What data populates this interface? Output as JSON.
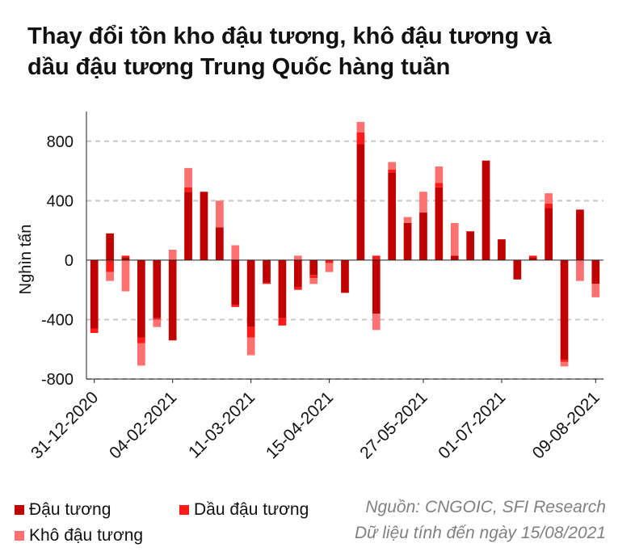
{
  "title_lines": [
    "Thay đổi tồn kho đậu tương, khô đậu tương và",
    "dầu đậu tương Trung Quốc hàng tuần"
  ],
  "source_lines": [
    "Nguồn: CNGOIC, SFI Research",
    "Dữ liệu tính đến ngày 15/08/2021"
  ],
  "legend": [
    {
      "label": "Đậu tương",
      "color": "#c00000"
    },
    {
      "label": "Dầu đậu tương",
      "color": "#ff1a1a"
    },
    {
      "label": "Khô đậu tương",
      "color": "#ff7070"
    }
  ],
  "chart_data": {
    "type": "bar",
    "stacked": true,
    "title": "Thay đổi tồn kho đậu tương, khô đậu tương và dầu đậu tương Trung Quốc hàng tuần",
    "xlabel": "",
    "ylabel": "Nghìn tấn",
    "ylim": [
      -800,
      1000
    ],
    "yticks": [
      -800,
      -400,
      0,
      400,
      800
    ],
    "grid": true,
    "legend_position": "bottom",
    "x_tick_labels": [
      "31-12-2020",
      "04-02-2021",
      "11-03-2021",
      "15-04-2021",
      "27-05-2021",
      "01-07-2021",
      "09-08-2021"
    ],
    "x_tick_label_indices": [
      0,
      5,
      10,
      15,
      21,
      26,
      32
    ],
    "series": [
      {
        "name": "Đậu tương",
        "color": "#c00000",
        "values": [
          -460,
          180,
          20,
          -520,
          -390,
          -540,
          460,
          460,
          220,
          -300,
          -450,
          -150,
          -390,
          -180,
          -100,
          0,
          -220,
          780,
          -360,
          590,
          250,
          320,
          490,
          30,
          190,
          670,
          140,
          -130,
          20,
          350,
          -670,
          340,
          -160
        ]
      },
      {
        "name": "Dầu đậu tương",
        "color": "#ff1a1a",
        "values": [
          -30,
          -80,
          10,
          -40,
          -10,
          0,
          30,
          0,
          0,
          -15,
          -70,
          -10,
          -50,
          -20,
          -20,
          -20,
          0,
          80,
          30,
          20,
          0,
          0,
          30,
          0,
          5,
          0,
          0,
          0,
          10,
          30,
          -15,
          0,
          0
        ]
      },
      {
        "name": "Khô đậu tương",
        "color": "#ff7070",
        "values": [
          0,
          -60,
          -210,
          -150,
          -50,
          70,
          130,
          0,
          180,
          100,
          -120,
          0,
          0,
          30,
          -40,
          -60,
          0,
          70,
          -110,
          50,
          40,
          140,
          110,
          220,
          0,
          0,
          0,
          0,
          0,
          70,
          -30,
          -140,
          -90
        ]
      }
    ]
  }
}
